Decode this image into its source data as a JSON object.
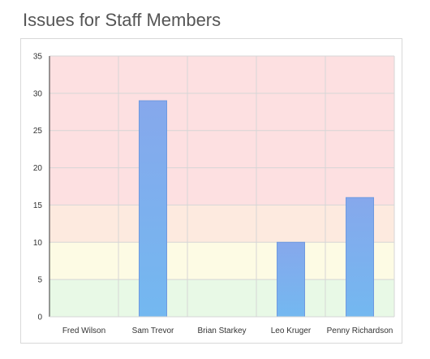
{
  "page": {
    "title": "Issues for Staff Members"
  },
  "colors": {
    "bar_fill_top": "#86a8ec",
    "bar_fill_bottom": "#73b8f0",
    "bar_stroke": "#6f9ae0",
    "band_red": "#fde0e1",
    "band_orange": "#fdeadf",
    "band_yellow": "#fdfbe4",
    "band_green": "#e8f9e6",
    "grid": "#d6d6d6",
    "axis": "#333333"
  },
  "chart_data": {
    "type": "bar",
    "categories": [
      "Fred Wilson",
      "Sam Trevor",
      "Brian Starkey",
      "Leo Kruger",
      "Penny Richardson"
    ],
    "values": [
      0,
      29,
      0,
      10,
      16
    ],
    "ylim": [
      0,
      35
    ],
    "yticks": [
      0,
      5,
      10,
      15,
      20,
      25,
      30,
      35
    ],
    "grid": true,
    "legend": "none",
    "bands": [
      {
        "from": 0,
        "to": 5,
        "color": "#e8f9e6"
      },
      {
        "from": 5,
        "to": 10,
        "color": "#fdfbe4"
      },
      {
        "from": 10,
        "to": 15,
        "color": "#fdeadf"
      },
      {
        "from": 15,
        "to": 35,
        "color": "#fde0e1"
      }
    ]
  }
}
